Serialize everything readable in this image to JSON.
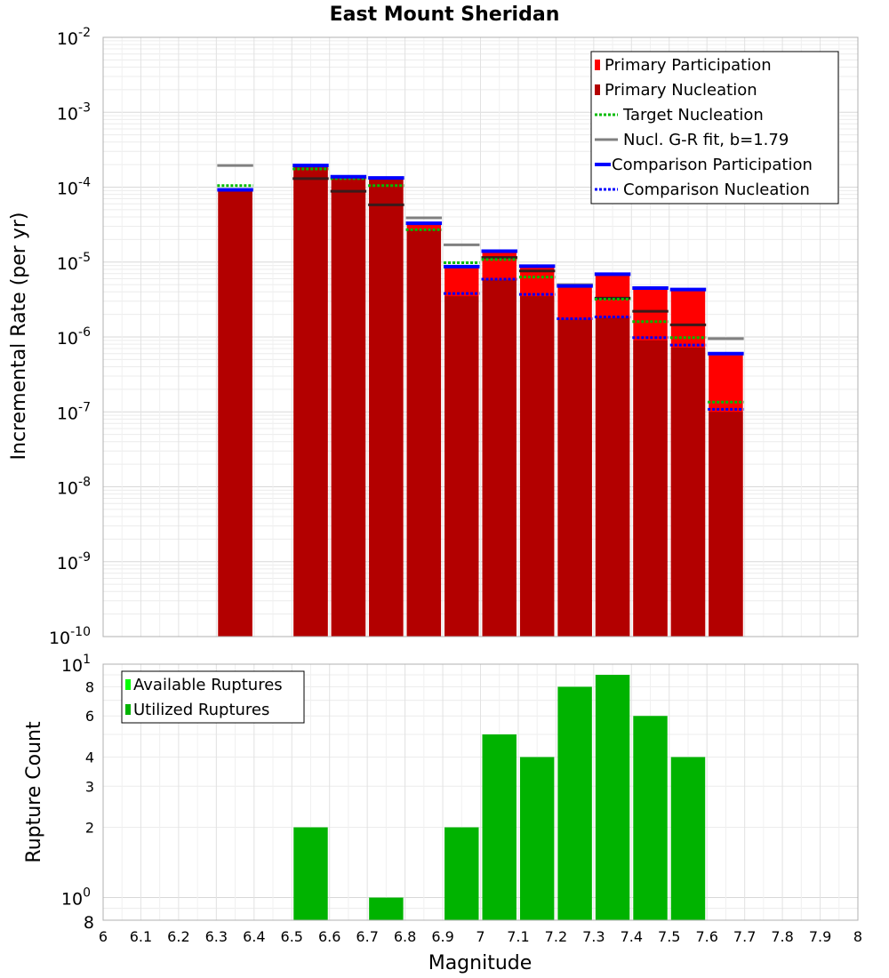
{
  "chart_data": [
    {
      "type": "bar",
      "title": "East Mount Sheridan",
      "xlabel": "Magnitude",
      "ylabel": "Incremental Rate (per yr)",
      "yscale": "log",
      "xlim": [
        6,
        8
      ],
      "ylim": [
        1e-10,
        0.01
      ],
      "y_tick_labels": [
        {
          "base": "10",
          "exp": "-2"
        },
        {
          "base": "10",
          "exp": "-3"
        },
        {
          "base": "10",
          "exp": "-4"
        },
        {
          "base": "10",
          "exp": "-5"
        },
        {
          "base": "10",
          "exp": "-6"
        },
        {
          "base": "10",
          "exp": "-7"
        },
        {
          "base": "10",
          "exp": "-8"
        },
        {
          "base": "10",
          "exp": "-9"
        },
        {
          "base": "10",
          "exp": "-10"
        }
      ],
      "bar_width": 0.1,
      "x": [
        6.35,
        6.55,
        6.65,
        6.75,
        6.85,
        6.95,
        7.05,
        7.15,
        7.25,
        7.35,
        7.45,
        7.55,
        7.65
      ],
      "series": [
        {
          "name": "Primary Participation",
          "color": "#ff0000",
          "values": [
            9e-05,
            0.00019,
            0.000135,
            0.00013,
            3.2e-05,
            8.5e-06,
            1.35e-05,
            8.5e-06,
            4.6e-06,
            6.6e-06,
            4.3e-06,
            4.1e-06,
            5.7e-07
          ]
        },
        {
          "name": "Primary Nucleation",
          "color": "#b30000",
          "values": [
            9e-05,
            0.00019,
            0.000135,
            0.00013,
            2.7e-05,
            3.5e-06,
            5.8e-06,
            3.5e-06,
            1.7e-06,
            1.8e-06,
            9e-07,
            7.2e-07,
            1e-07
          ]
        },
        {
          "name": "Target Nucleation",
          "color": "#00bb00",
          "values": [
            0.000105,
            0.000175,
            0.00013,
            0.000105,
            2.7e-05,
            9.8e-06,
            1.08e-05,
            6.3e-06,
            null,
            3.2e-06,
            1.6e-06,
            9.8e-07,
            1.35e-07
          ]
        },
        {
          "name": "Nucl. G-R fit, b=1.79",
          "color": "#808080",
          "values": [
            0.000195,
            0.00013,
            8.8e-05,
            5.8e-05,
            3.9e-05,
            1.7e-05,
            1.15e-05,
            7.6e-06,
            5e-06,
            3.3e-06,
            2.2e-06,
            1.45e-06,
            9.5e-07
          ]
        },
        {
          "name": "Comparison Participation",
          "color": "#0000ff",
          "values": [
            9.2e-05,
            0.000195,
            0.000138,
            0.000133,
            3.3e-05,
            8.7e-06,
            1.4e-05,
            8.8e-06,
            4.8e-06,
            6.9e-06,
            4.5e-06,
            4.3e-06,
            6e-07
          ]
        },
        {
          "name": "Comparison Nucleation",
          "color": "#0000ff",
          "values": [
            null,
            null,
            null,
            null,
            null,
            3.8e-06,
            5.9e-06,
            3.7e-06,
            1.75e-06,
            1.85e-06,
            9.8e-07,
            7.8e-07,
            1.08e-07
          ]
        }
      ],
      "legend_position": "top-right"
    },
    {
      "type": "bar",
      "xlabel": "Magnitude",
      "ylabel": "Rupture Count",
      "yscale": "log",
      "xlim": [
        6,
        8
      ],
      "ylim": [
        0.8,
        10
      ],
      "x_ticks": [
        "6",
        "6.1",
        "6.2",
        "6.3",
        "6.4",
        "6.5",
        "6.6",
        "6.7",
        "6.8",
        "6.9",
        "7",
        "7.1",
        "7.2",
        "7.3",
        "7.4",
        "7.5",
        "7.6",
        "7.7",
        "7.8",
        "7.9",
        "8"
      ],
      "y_minor_tick_labels": [
        "8",
        "6",
        "4",
        "3",
        "2",
        "8"
      ],
      "y_major_tick_labels": [
        {
          "base": "10",
          "exp": "1"
        },
        {
          "base": "10",
          "exp": "0"
        }
      ],
      "bar_width": 0.1,
      "x": [
        6.55,
        6.75,
        6.95,
        7.05,
        7.15,
        7.25,
        7.35,
        7.45,
        7.55
      ],
      "series": [
        {
          "name": "Available Ruptures",
          "color": "#00ff00",
          "values": [
            2,
            1,
            2,
            5,
            4,
            8,
            9,
            6,
            4
          ]
        },
        {
          "name": "Utilized Ruptures",
          "color": "#00b300",
          "values": [
            2,
            1,
            2,
            5,
            4,
            8,
            9,
            6,
            4
          ]
        }
      ],
      "legend_position": "top-left"
    }
  ]
}
